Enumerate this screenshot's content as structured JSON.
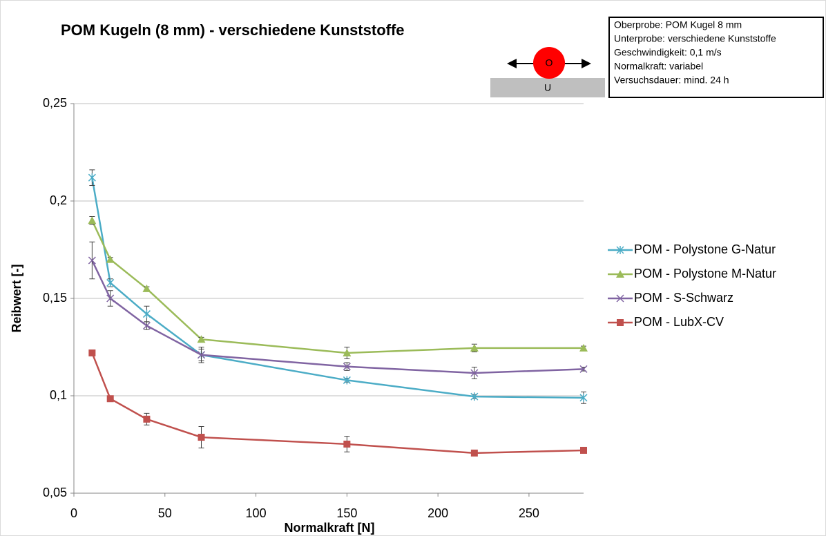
{
  "chart_data": {
    "type": "line",
    "title": "POM Kugeln (8 mm) - verschiedene Kunststoffe",
    "info_box": [
      "Oberprobe: POM Kugel 8 mm",
      "Unterprobe: verschiedene Kunststoffe",
      "Geschwindigkeit:  0,1 m/s",
      "Normalkraft: variabel",
      "Versuchsdauer: mind. 24 h"
    ],
    "diagram_labels": {
      "upper": "O",
      "lower": "U"
    },
    "x_label": "Normalkraft [N]",
    "y_label": "Reibwert [-]",
    "x": [
      10,
      20,
      40,
      70,
      150,
      220,
      280
    ],
    "xlim": [
      0,
      280
    ],
    "xticks": [
      0,
      50,
      100,
      150,
      200,
      250
    ],
    "ylim": [
      0.05,
      0.25
    ],
    "yticks": [
      {
        "value": 0.05,
        "label": "0,05"
      },
      {
        "value": 0.1,
        "label": "0,1"
      },
      {
        "value": 0.15,
        "label": "0,15"
      },
      {
        "value": 0.2,
        "label": "0,2"
      },
      {
        "value": 0.25,
        "label": "0,25"
      }
    ],
    "grid": true,
    "series": [
      {
        "name": "POM -  Polystone G-Natur",
        "color": "#4bacc6",
        "marker": "star",
        "values": [
          0.212,
          0.158,
          0.142,
          0.121,
          0.108,
          0.0996,
          0.099
        ],
        "errors": [
          0.004,
          0.002,
          0.004,
          0.004,
          0.001,
          0.001,
          0.003
        ]
      },
      {
        "name": "POM -  Polystone M-Natur",
        "color": "#9bbb59",
        "marker": "triangle",
        "values": [
          0.19,
          0.17,
          0.155,
          0.129,
          0.122,
          0.1245,
          0.1245
        ],
        "errors": [
          0.002,
          0.001,
          0.001,
          0.001,
          0.003,
          0.002,
          0.001
        ]
      },
      {
        "name": "POM -  S-Schwarz",
        "color": "#8064a2",
        "marker": "x",
        "values": [
          0.1695,
          0.15,
          0.136,
          0.121,
          0.115,
          0.1117,
          0.1137
        ],
        "errors": [
          0.0095,
          0.004,
          0.002,
          0.003,
          0.002,
          0.003,
          0.001
        ]
      },
      {
        "name": "POM -  LubX-CV",
        "color": "#c0504d",
        "marker": "square",
        "values": [
          0.122,
          0.0985,
          0.088,
          0.0787,
          0.0752,
          0.0706,
          0.072
        ],
        "errors": [
          0.001,
          0.001,
          0.003,
          0.0055,
          0.004,
          0.001,
          0.001
        ]
      }
    ]
  }
}
